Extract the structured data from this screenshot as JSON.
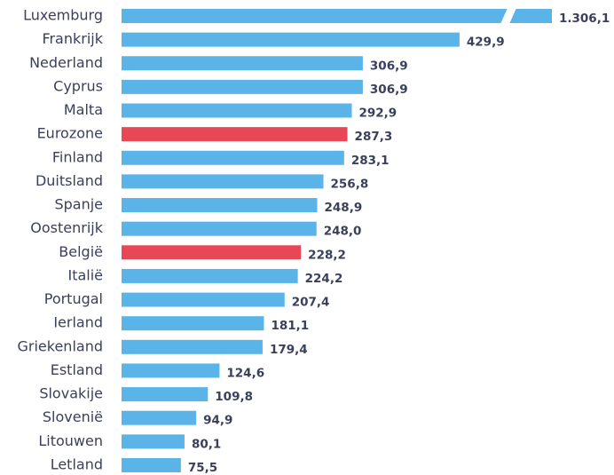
{
  "chart_data": {
    "type": "bar",
    "orientation": "horizontal",
    "categories": [
      "Luxemburg",
      "Frankrijk",
      "Nederland",
      "Cyprus",
      "Malta",
      "Eurozone",
      "Finland",
      "Duitsland",
      "Spanje",
      "Oostenrijk",
      "België",
      "Italië",
      "Portugal",
      "Ierland",
      "Griekenland",
      "Estland",
      "Slovakije",
      "Slovenië",
      "Litouwen",
      "Letland"
    ],
    "values": [
      1306.1,
      429.9,
      306.9,
      306.9,
      292.9,
      287.3,
      283.1,
      256.8,
      248.9,
      248.0,
      228.2,
      224.2,
      207.4,
      181.1,
      179.4,
      124.6,
      109.8,
      94.9,
      80.1,
      75.5
    ],
    "value_labels": [
      "1.306,1",
      "429,9",
      "306,9",
      "306,9",
      "292,9",
      "287,3",
      "283,1",
      "256,8",
      "248,9",
      "248,0",
      "228,2",
      "224,2",
      "207,4",
      "181,1",
      "179,4",
      "124,6",
      "109,8",
      "94,9",
      "80,1",
      "75,5"
    ],
    "colors": [
      "#5ab4e8",
      "#5ab4e8",
      "#5ab4e8",
      "#5ab4e8",
      "#5ab4e8",
      "#e84855",
      "#5ab4e8",
      "#5ab4e8",
      "#5ab4e8",
      "#5ab4e8",
      "#e84855",
      "#5ab4e8",
      "#5ab4e8",
      "#5ab4e8",
      "#5ab4e8",
      "#5ab4e8",
      "#5ab4e8",
      "#5ab4e8",
      "#5ab4e8",
      "#5ab4e8"
    ]
  }
}
